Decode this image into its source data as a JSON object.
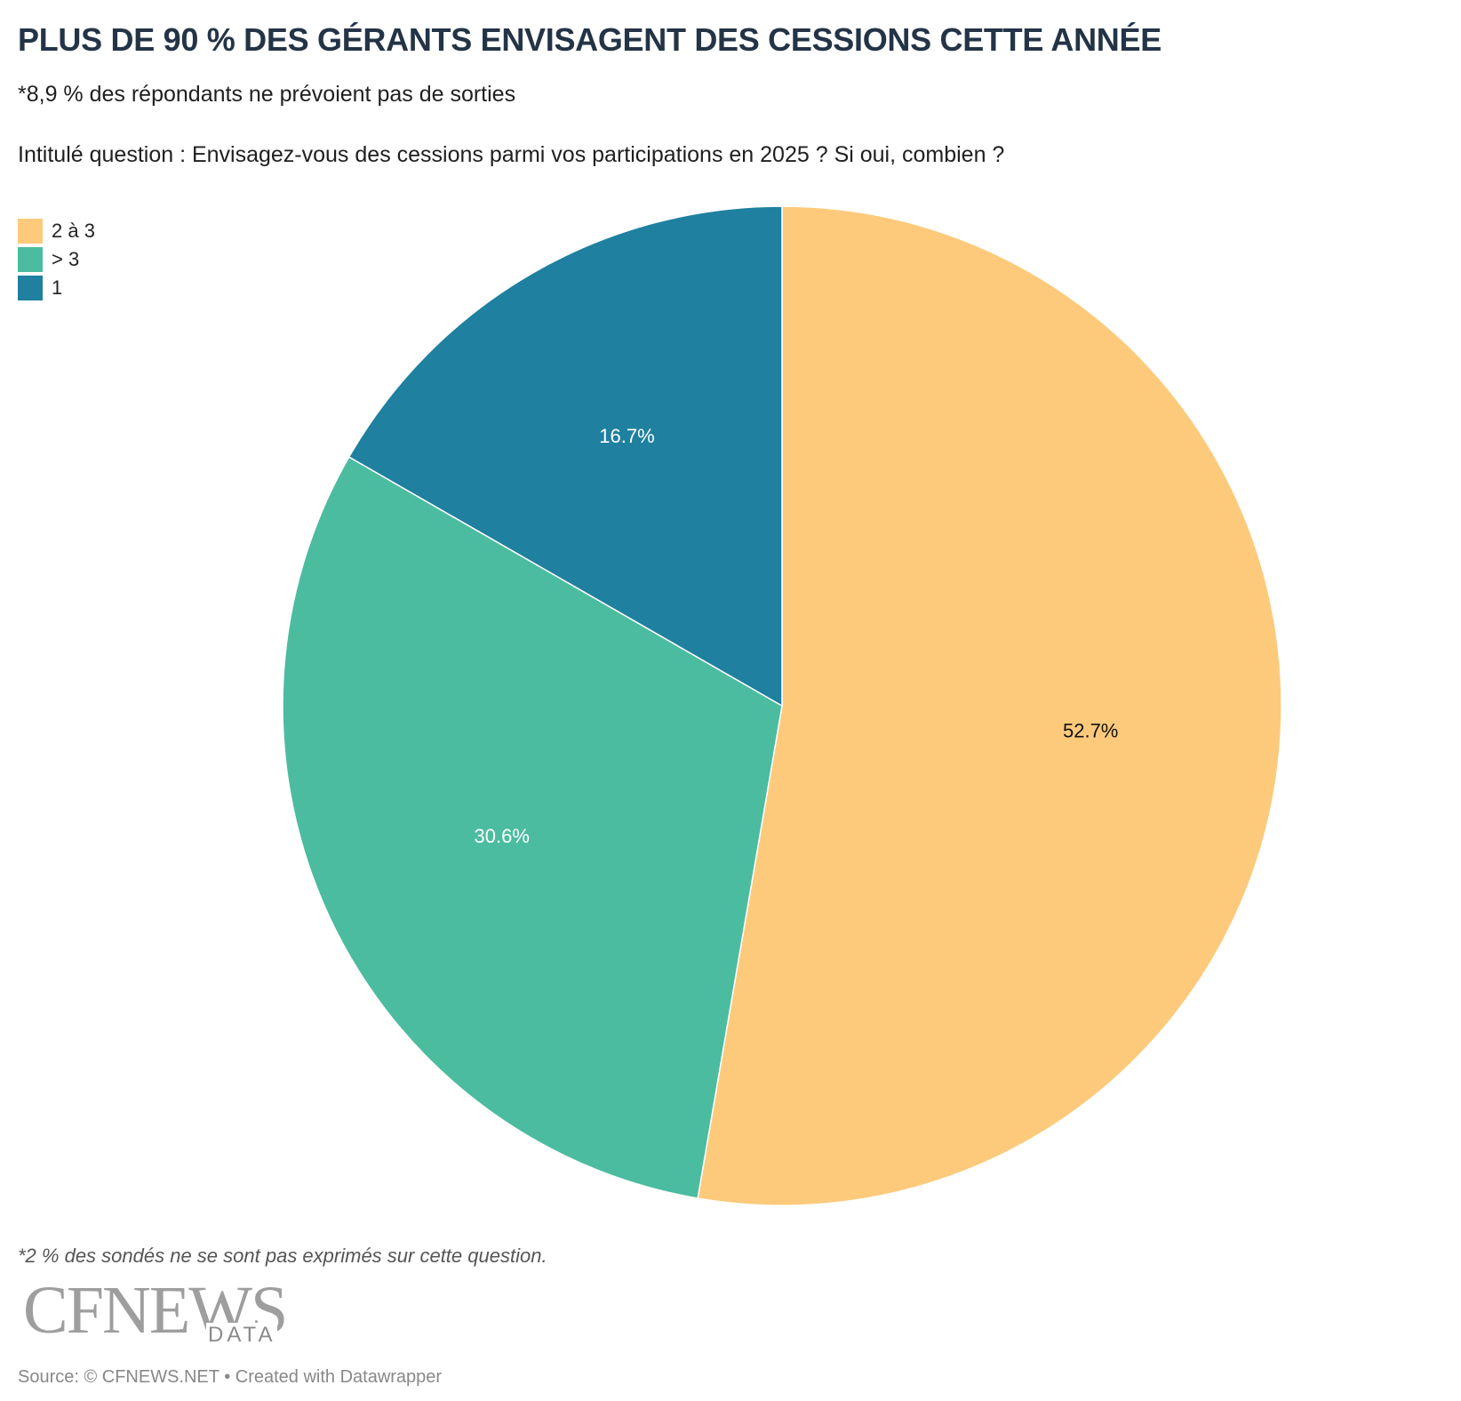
{
  "header": {
    "title": "PLUS DE 90 % DES GÉRANTS ENVISAGENT DES CESSIONS CETTE ANNÉE",
    "subtitle_line1": "*8,9 % des répondants ne prévoient pas de sorties",
    "subtitle_line2": "Intitulé question : Envisagez-vous des cessions parmi vos participations en 2025 ? Si oui, combien ?"
  },
  "legend": [
    {
      "label": "2 à 3",
      "color": "#fdca7b"
    },
    {
      "label": "> 3",
      "color": "#4bbc9f"
    },
    {
      "label": "1",
      "color": "#1f80a0"
    }
  ],
  "chart_data": {
    "type": "pie",
    "slices": [
      {
        "label": "2 à 3",
        "value": 52.7,
        "display": "52.7%",
        "color": "#fdca7b",
        "label_color": "#111111"
      },
      {
        "label": "> 3",
        "value": 30.6,
        "display": "30.6%",
        "color": "#4bbc9f",
        "label_color": "#ffffff"
      },
      {
        "label": "1",
        "value": 16.7,
        "display": "16.7%",
        "color": "#1f80a0",
        "label_color": "#ffffff"
      }
    ],
    "start_angle": "12 o'clock",
    "direction": "clockwise",
    "legend_position": "top-left"
  },
  "footer": {
    "footnote": "*2 % des sondés ne se sont pas exprimés sur cette question.",
    "logo_main": "CFNEWS",
    "logo_sub": "DATA",
    "source": "Source: © CFNEWS.NET • Created with Datawrapper"
  }
}
